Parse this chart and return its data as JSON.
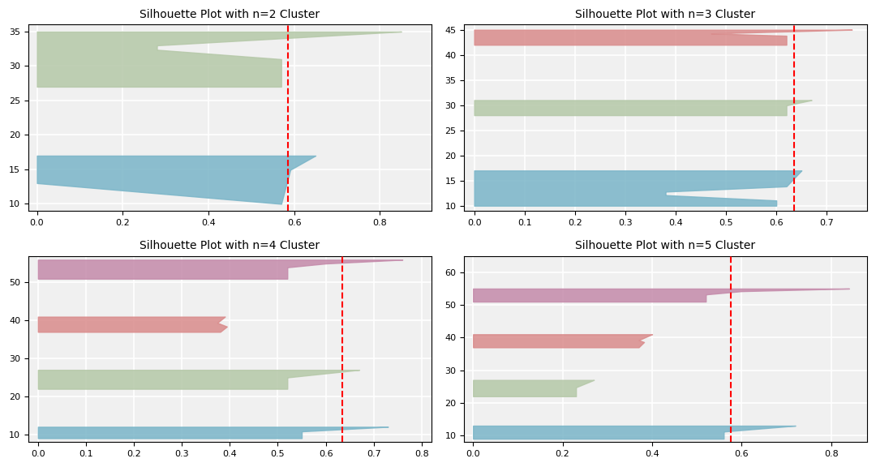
{
  "plots": [
    {
      "title": "Silhouette Plot with n=2 Cluster",
      "avg_silhouette": 0.585,
      "ylim": [
        9,
        36
      ],
      "xlim": [
        -0.02,
        0.92
      ],
      "yticks": [
        10,
        15,
        20,
        25,
        30,
        35
      ],
      "xticks": [
        0.0,
        0.2,
        0.4,
        0.6,
        0.8
      ]
    },
    {
      "title": "Silhouette Plot with n=3 Cluster",
      "avg_silhouette": 0.635,
      "ylim": [
        9,
        46
      ],
      "xlim": [
        -0.02,
        0.78
      ],
      "yticks": [
        10,
        15,
        20,
        25,
        30,
        35,
        40,
        45
      ],
      "xticks": [
        0.0,
        0.1,
        0.2,
        0.3,
        0.4,
        0.5,
        0.6,
        0.7
      ]
    },
    {
      "title": "Silhouette Plot with n=4 Cluster",
      "avg_silhouette": 0.635,
      "ylim": [
        8,
        57
      ],
      "xlim": [
        -0.02,
        0.82
      ],
      "yticks": [
        10,
        20,
        30,
        40,
        50
      ],
      "xticks": [
        0.0,
        0.1,
        0.2,
        0.3,
        0.4,
        0.5,
        0.6,
        0.7,
        0.8
      ]
    },
    {
      "title": "Silhouette Plot with n=5 Cluster",
      "avg_silhouette": 0.575,
      "ylim": [
        8,
        65
      ],
      "xlim": [
        -0.02,
        0.88
      ],
      "yticks": [
        10,
        20,
        30,
        40,
        50,
        60
      ],
      "xticks": [
        0.0,
        0.2,
        0.4,
        0.6,
        0.8
      ]
    }
  ],
  "bg_color": "#f0f0f0",
  "grid_color": "#ffffff",
  "color_green": "#b5c8a8",
  "color_blue": "#7ab5c8",
  "color_red": "#d98b8b",
  "color_pink": "#c48aaa",
  "title_fontsize": 10,
  "tick_fontsize": 8
}
